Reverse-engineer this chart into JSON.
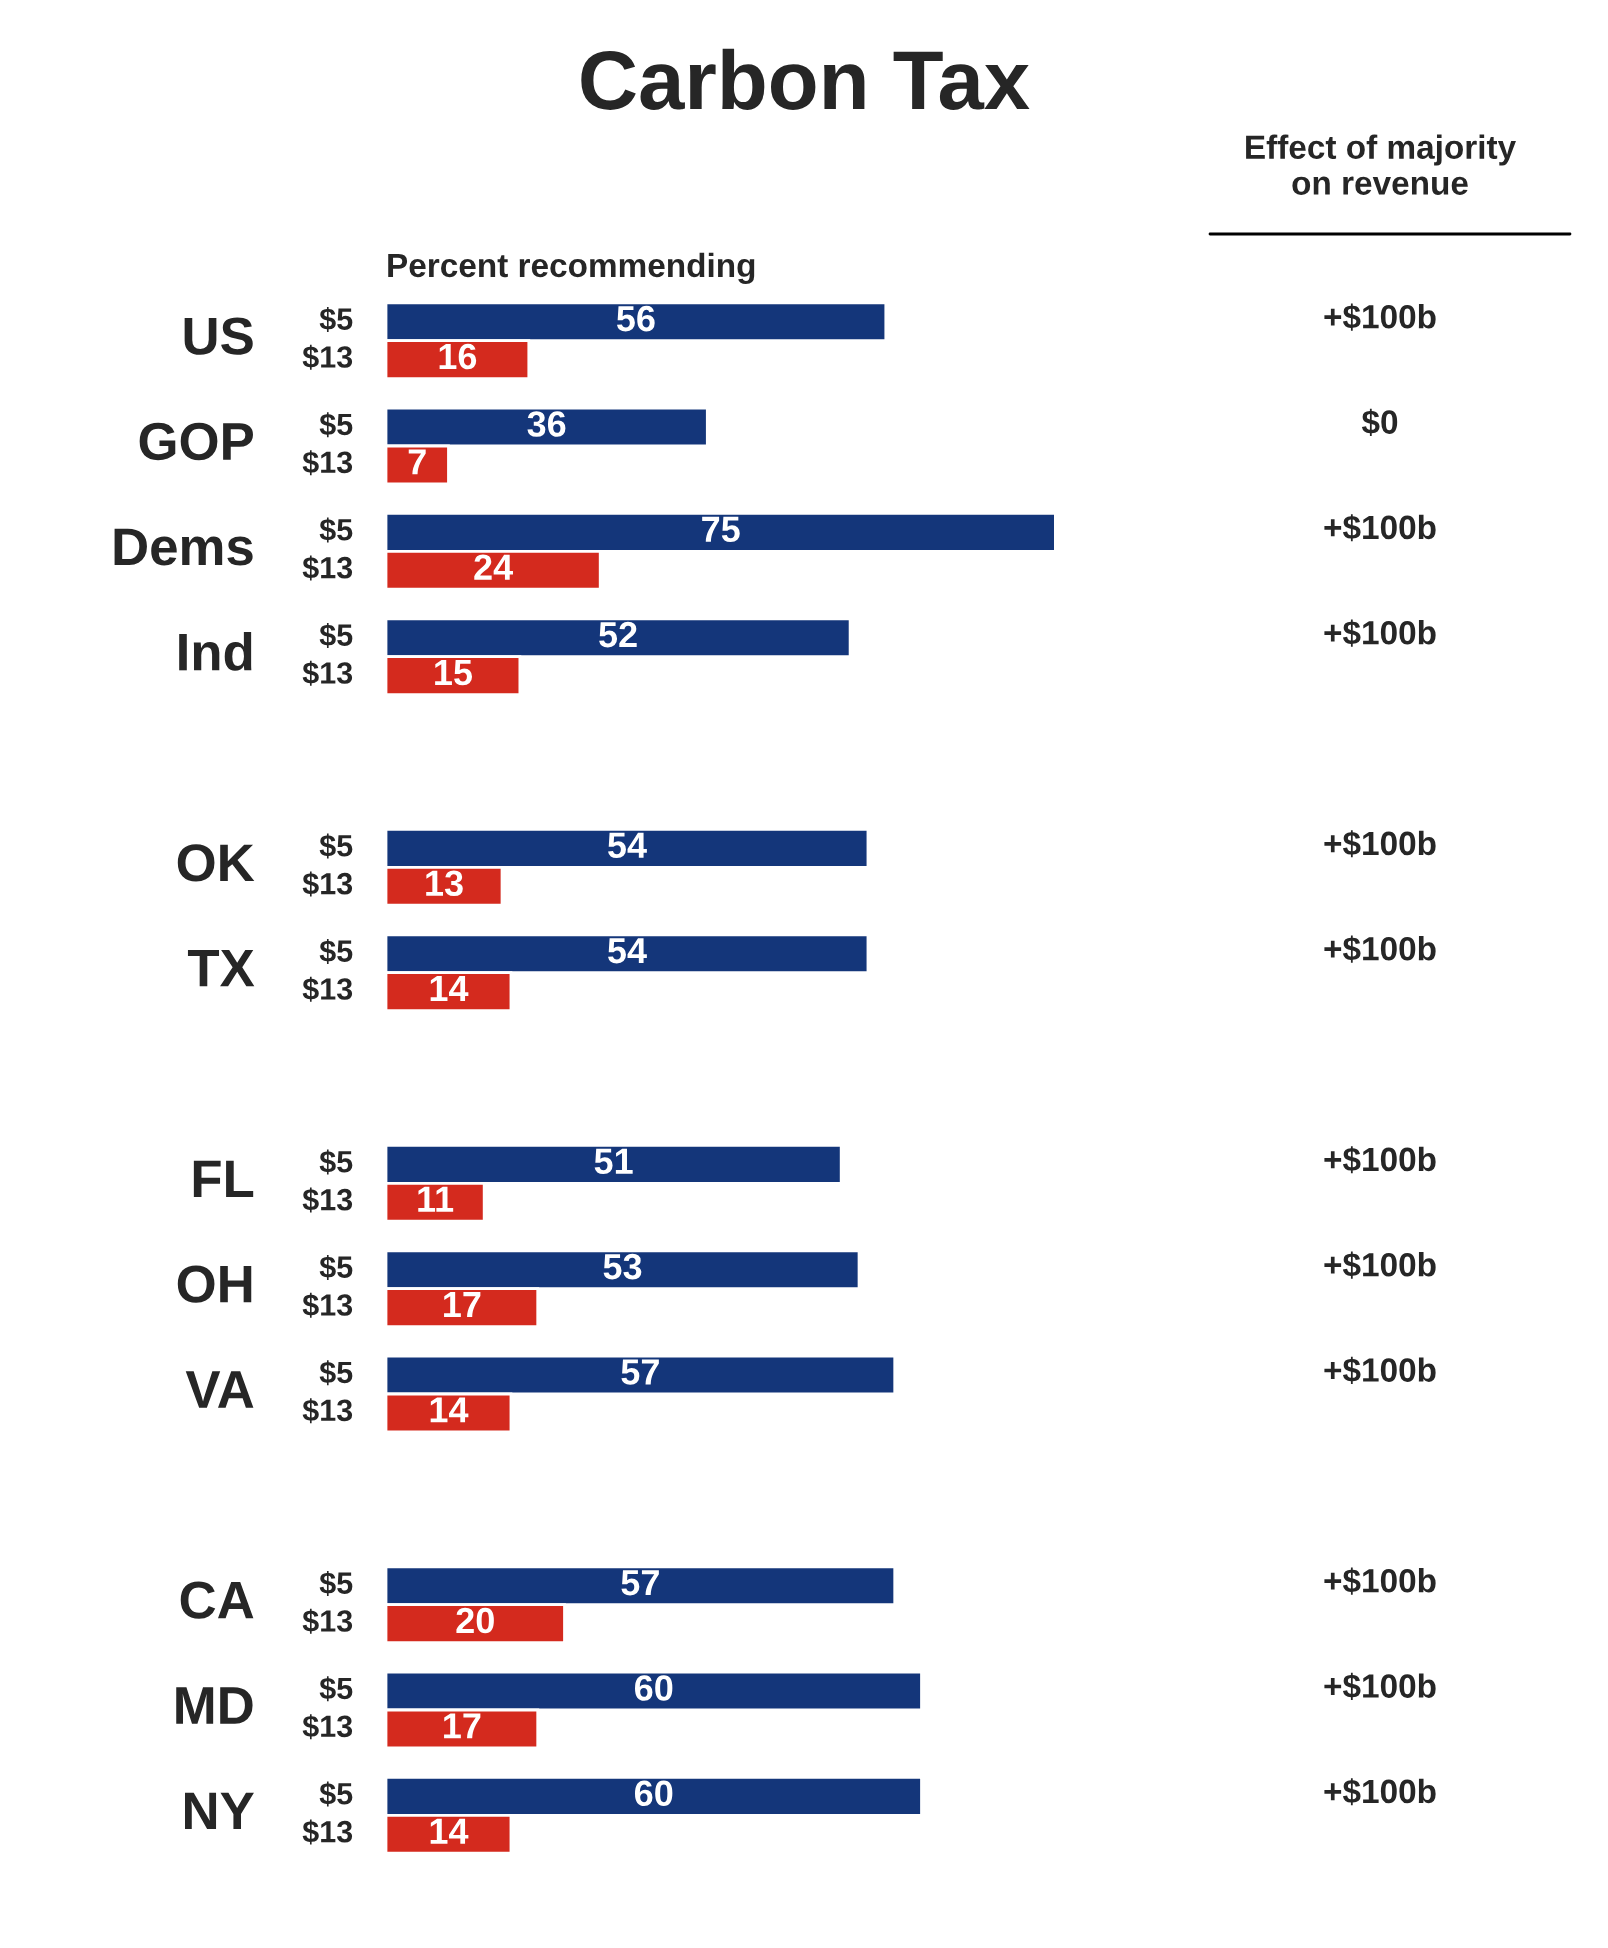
{
  "chart_data": {
    "type": "bar",
    "orientation": "horizontal",
    "title": "Carbon Tax",
    "xlabel": "Percent recommending",
    "data_labels": true,
    "categories": [
      "US",
      "GOP",
      "Dems",
      "Ind",
      null,
      "OK",
      "TX",
      null,
      "FL",
      "OH",
      "VA",
      null,
      "CA",
      "MD",
      "NY"
    ],
    "series": [
      {
        "name": "$5",
        "color": "#14367a",
        "values": [
          56,
          36,
          75,
          52,
          null,
          54,
          54,
          null,
          51,
          53,
          57,
          null,
          57,
          60,
          60
        ]
      },
      {
        "name": "$13",
        "color": "#d42a1e",
        "values": [
          16,
          7,
          24,
          15,
          null,
          13,
          14,
          null,
          11,
          17,
          14,
          null,
          20,
          17,
          14
        ]
      }
    ],
    "annotations": [
      "Effect of majority\non revenue",
      "+$100b",
      "$0",
      "+$100b",
      "+$100b",
      "+$100b",
      "+$100b",
      "+$100b",
      "+$100b",
      "+$100b",
      "+$100b",
      "+$100b",
      "+$100b"
    ]
  }
}
